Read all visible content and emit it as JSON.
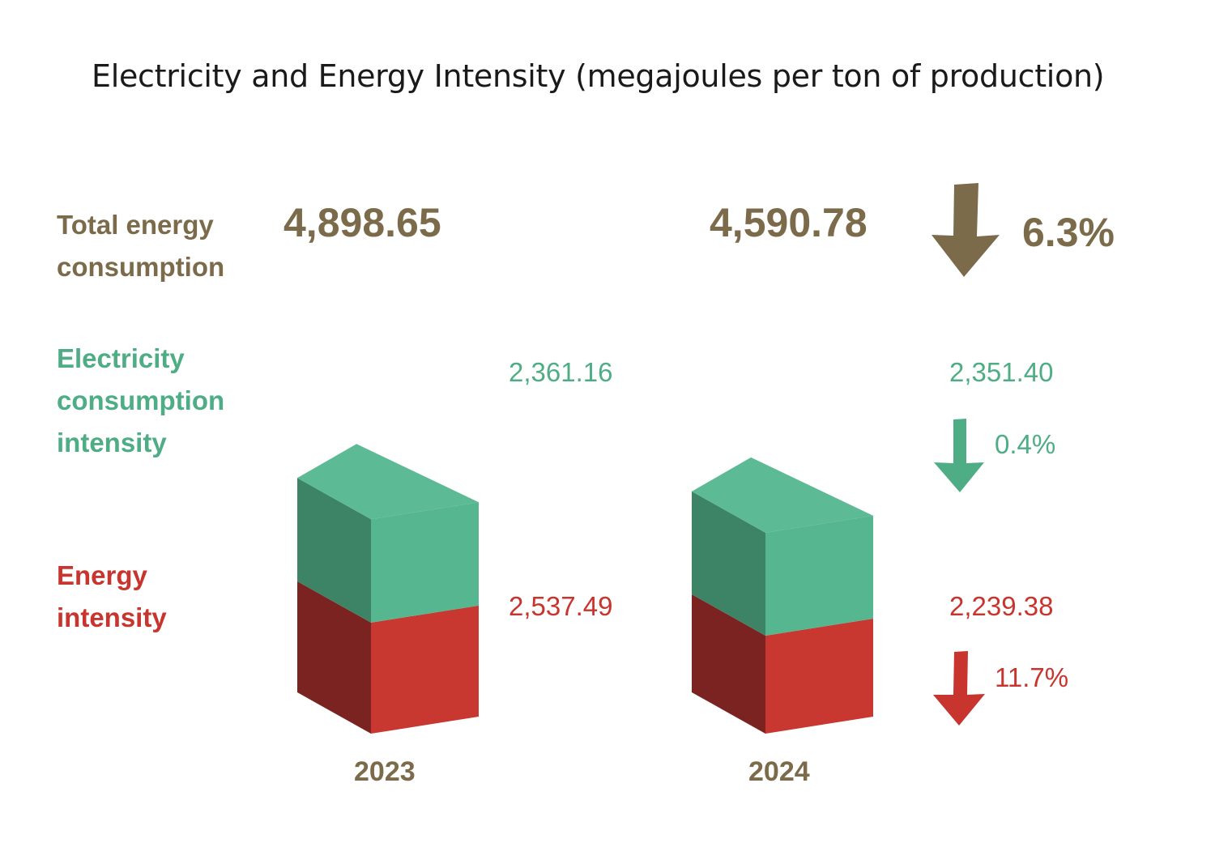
{
  "chart_data": {
    "type": "bar",
    "title": "Electricity and Energy Intensity (megajoules per ton of production)",
    "categories": [
      "2023",
      "2024"
    ],
    "series": [
      {
        "name": "Energy intensity",
        "values": [
          2537.49,
          2239.38
        ],
        "labels": [
          "2,537.49",
          "2,239.38"
        ],
        "color": "#c8342e"
      },
      {
        "name": "Electricity consumption intensity",
        "values": [
          2361.16,
          2351.4
        ],
        "labels": [
          "2,361.16",
          "2,351.40"
        ],
        "color": "#4fad86"
      }
    ],
    "totals": {
      "name": "Total energy consumption",
      "values": [
        4898.65,
        4590.78
      ],
      "labels": [
        "4,898.65",
        "4,590.78"
      ],
      "color": "#7b6b4a"
    },
    "changes": {
      "total": "6.3%",
      "electricity": "0.4%",
      "energy": "11.7%"
    },
    "stacked": true,
    "legend_position": "left"
  },
  "legend": {
    "total": "Total energy consumption",
    "electricity": "Electricity consumption intensity",
    "energy": "Energy intensity"
  },
  "colors": {
    "total": "#7b6b4a",
    "electricity_front": "#55b690",
    "electricity_side": "#3c8465",
    "electricity_top": "#5cba95",
    "energy_front": "#c83831",
    "energy_side": "#7b2320"
  },
  "icons": {
    "total_change": "arrow-down-icon",
    "electricity_change": "arrow-down-icon",
    "energy_change": "arrow-down-icon"
  }
}
